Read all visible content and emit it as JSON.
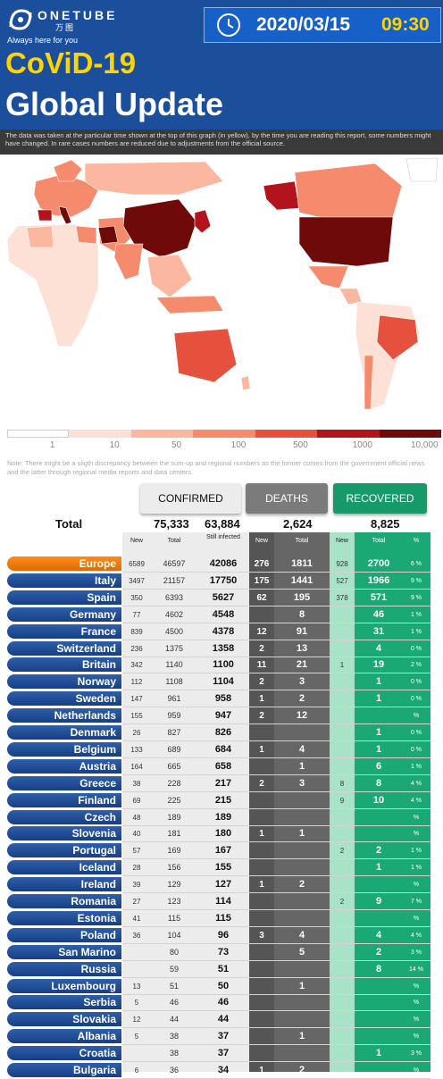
{
  "header": {
    "brand": "ONETUBE",
    "brand_sub": "万图",
    "tagline": "Always here for you",
    "date": "2020/03/15",
    "time": "09:30",
    "title_line1": "CoViD-19",
    "title_line2": "Global Update",
    "disclaimer": "The data was taken at the particular time shown at the top of this graph (in yellow), by the time you are reading this report, some numbers might have changed. In rare cases numbers are reduced due to adjustments from the official source."
  },
  "map_scale": {
    "labels": [
      "1",
      "10",
      "50",
      "100",
      "500",
      "1000",
      "10,000"
    ],
    "colors": [
      "#ffffff",
      "#fde0d6",
      "#fbb7a0",
      "#f68a6c",
      "#e5513d",
      "#b3141c",
      "#6e0a0a"
    ]
  },
  "note": "Note: There might be a sligth discrepancy between the sum-up and regional numbers as the former comes from the government official news and the latter through regional media reports and data centers.",
  "headers": {
    "confirmed": "CONFIRMED",
    "deaths": "DEATHS",
    "recovered": "RECOVERED"
  },
  "totals": {
    "label": "Total",
    "confirmed_total": "75,333",
    "still_infected": "63,884",
    "deaths_total": "2,624",
    "recovered_total": "8,825"
  },
  "subheaders": {
    "new": "New",
    "total": "Total",
    "still": "Still infected",
    "d_new": "New",
    "d_total": "Total",
    "r_new": "New",
    "r_total": "Total",
    "pct": "%"
  },
  "colors": {
    "header_blue": "#1b4f9c",
    "accent_yellow": "#ffd400",
    "deaths_gray": "#6b6b6b",
    "recovered_green": "#1aa874",
    "country_blue": "#1f4c95",
    "europe_orange": "#f07d10"
  },
  "chart_data": {
    "type": "table",
    "columns": [
      "Country",
      "Confirmed New",
      "Confirmed Total",
      "Still infected",
      "Deaths New",
      "Deaths Total",
      "Recovered New",
      "Recovered Total",
      "%"
    ],
    "rows": [
      [
        "Europe",
        "6589",
        "46597",
        "42086",
        "276",
        "1811",
        "928",
        "2700",
        "6 %"
      ],
      [
        "Italy",
        "3497",
        "21157",
        "17750",
        "175",
        "1441",
        "527",
        "1966",
        "9 %"
      ],
      [
        "Spain",
        "350",
        "6393",
        "5627",
        "62",
        "195",
        "378",
        "571",
        "9 %"
      ],
      [
        "Germany",
        "77",
        "4602",
        "4548",
        "",
        "8",
        "",
        "46",
        "1 %"
      ],
      [
        "France",
        "839",
        "4500",
        "4378",
        "12",
        "91",
        "",
        "31",
        "1 %"
      ],
      [
        "Switzerland",
        "236",
        "1375",
        "1358",
        "2",
        "13",
        "",
        "4",
        "0 %"
      ],
      [
        "Britain",
        "342",
        "1140",
        "1100",
        "11",
        "21",
        "1",
        "19",
        "2 %"
      ],
      [
        "Norway",
        "112",
        "1108",
        "1104",
        "2",
        "3",
        "",
        "1",
        "0 %"
      ],
      [
        "Sweden",
        "147",
        "961",
        "958",
        "1",
        "2",
        "",
        "1",
        "0 %"
      ],
      [
        "Netherlands",
        "155",
        "959",
        "947",
        "2",
        "12",
        "",
        "",
        "%"
      ],
      [
        "Denmark",
        "26",
        "827",
        "826",
        "",
        "",
        "",
        "1",
        "0 %"
      ],
      [
        "Belgium",
        "133",
        "689",
        "684",
        "1",
        "4",
        "",
        "1",
        "0 %"
      ],
      [
        "Austria",
        "164",
        "665",
        "658",
        "",
        "1",
        "",
        "6",
        "1 %"
      ],
      [
        "Greece",
        "38",
        "228",
        "217",
        "2",
        "3",
        "8",
        "8",
        "4 %"
      ],
      [
        "Finland",
        "69",
        "225",
        "215",
        "",
        "",
        "9",
        "10",
        "4 %"
      ],
      [
        "Czech",
        "48",
        "189",
        "189",
        "",
        "",
        "",
        "",
        "%"
      ],
      [
        "Slovenia",
        "40",
        "181",
        "180",
        "1",
        "1",
        "",
        "",
        "%"
      ],
      [
        "Portugal",
        "57",
        "169",
        "167",
        "",
        "",
        "2",
        "2",
        "1 %"
      ],
      [
        "Iceland",
        "28",
        "156",
        "155",
        "",
        "",
        "",
        "1",
        "1 %"
      ],
      [
        "Ireland",
        "39",
        "129",
        "127",
        "1",
        "2",
        "",
        "",
        "%"
      ],
      [
        "Romania",
        "27",
        "123",
        "114",
        "",
        "",
        "2",
        "9",
        "7 %"
      ],
      [
        "Estonia",
        "41",
        "115",
        "115",
        "",
        "",
        "",
        "",
        "%"
      ],
      [
        "Poland",
        "36",
        "104",
        "96",
        "3",
        "4",
        "",
        "4",
        "4 %"
      ],
      [
        "San Marino",
        "",
        "80",
        "73",
        "",
        "5",
        "",
        "2",
        "3 %"
      ],
      [
        "Russia",
        "",
        "59",
        "51",
        "",
        "",
        "",
        "8",
        "14 %"
      ],
      [
        "Luxembourg",
        "13",
        "51",
        "50",
        "",
        "1",
        "",
        "",
        "%"
      ],
      [
        "Serbia",
        "5",
        "46",
        "46",
        "",
        "",
        "",
        "",
        "%"
      ],
      [
        "Slovakia",
        "12",
        "44",
        "44",
        "",
        "",
        "",
        "",
        "%"
      ],
      [
        "Albania",
        "5",
        "38",
        "37",
        "",
        "1",
        "",
        "",
        "%"
      ],
      [
        "Croatia",
        "",
        "38",
        "37",
        "",
        "",
        "",
        "1",
        "3 %"
      ],
      [
        "Bulgaria",
        "6",
        "36",
        "34",
        "1",
        "2",
        "",
        "",
        "%"
      ]
    ]
  }
}
